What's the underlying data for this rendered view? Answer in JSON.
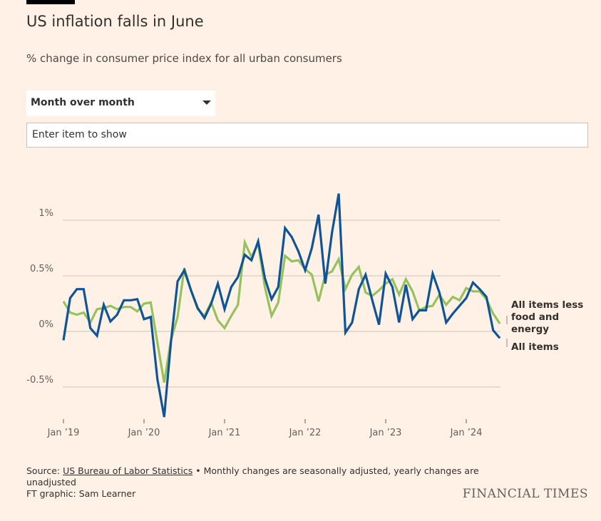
{
  "header": {
    "title": "US inflation falls in June",
    "subtitle": "% change in consumer price index for all urban consumers"
  },
  "controls": {
    "select_value": "Month over month",
    "input_placeholder": "Enter item to show"
  },
  "footer": {
    "source_prefix": "Source: ",
    "source_link": "US Bureau of Labor Statistics",
    "source_note": " • Monthly changes are seasonally adjusted, yearly changes are unadjusted",
    "credit": "FT graphic: Sam Learner",
    "logo": "FINANCIAL TIMES"
  },
  "chart_data": {
    "type": "line",
    "title": "US inflation falls in June",
    "ylabel": "% change",
    "ylim": [
      -0.8,
      1.3
    ],
    "yticks": [
      {
        "v": 1,
        "label": "1%"
      },
      {
        "v": 0.5,
        "label": "0.5%"
      },
      {
        "v": 0,
        "label": "0%"
      },
      {
        "v": -0.5,
        "label": "-0.5%"
      }
    ],
    "xticks": [
      {
        "i": 0,
        "label": "Jan ’19"
      },
      {
        "i": 12,
        "label": "Jan ’20"
      },
      {
        "i": 24,
        "label": "Jan ’21"
      },
      {
        "i": 36,
        "label": "Jan ’22"
      },
      {
        "i": 48,
        "label": "Jan ’23"
      },
      {
        "i": 60,
        "label": "Jan ’24"
      }
    ],
    "grid": true,
    "x": [
      "2019-01",
      "2019-02",
      "2019-03",
      "2019-04",
      "2019-05",
      "2019-06",
      "2019-07",
      "2019-08",
      "2019-09",
      "2019-10",
      "2019-11",
      "2019-12",
      "2020-01",
      "2020-02",
      "2020-03",
      "2020-04",
      "2020-05",
      "2020-06",
      "2020-07",
      "2020-08",
      "2020-09",
      "2020-10",
      "2020-11",
      "2020-12",
      "2021-01",
      "2021-02",
      "2021-03",
      "2021-04",
      "2021-05",
      "2021-06",
      "2021-07",
      "2021-08",
      "2021-09",
      "2021-10",
      "2021-11",
      "2021-12",
      "2022-01",
      "2022-02",
      "2022-03",
      "2022-04",
      "2022-05",
      "2022-06",
      "2022-07",
      "2022-08",
      "2022-09",
      "2022-10",
      "2022-11",
      "2022-12",
      "2023-01",
      "2023-02",
      "2023-03",
      "2023-04",
      "2023-05",
      "2023-06",
      "2023-07",
      "2023-08",
      "2023-09",
      "2023-10",
      "2023-11",
      "2023-12",
      "2024-01",
      "2024-02",
      "2024-03",
      "2024-04",
      "2024-05",
      "2024-06"
    ],
    "series": [
      {
        "name": "All items less food and energy",
        "color": "#96c25c",
        "values": [
          0.27,
          0.17,
          0.15,
          0.17,
          0.08,
          0.2,
          0.21,
          0.23,
          0.2,
          0.22,
          0.22,
          0.18,
          0.25,
          0.26,
          -0.1,
          -0.46,
          -0.08,
          0.13,
          0.57,
          0.37,
          0.2,
          0.14,
          0.26,
          0.1,
          0.03,
          0.14,
          0.24,
          0.8,
          0.67,
          0.79,
          0.4,
          0.14,
          0.26,
          0.68,
          0.63,
          0.64,
          0.56,
          0.51,
          0.27,
          0.51,
          0.54,
          0.65,
          0.38,
          0.51,
          0.58,
          0.35,
          0.32,
          0.37,
          0.43,
          0.47,
          0.33,
          0.47,
          0.36,
          0.19,
          0.22,
          0.23,
          0.33,
          0.24,
          0.31,
          0.28,
          0.39,
          0.36,
          0.36,
          0.29,
          0.16,
          0.07
        ]
      },
      {
        "name": "All items",
        "color": "#0f5499",
        "values": [
          -0.08,
          0.3,
          0.38,
          0.38,
          0.03,
          -0.04,
          0.24,
          0.09,
          0.15,
          0.28,
          0.28,
          0.29,
          0.11,
          0.13,
          -0.43,
          -0.77,
          -0.1,
          0.45,
          0.55,
          0.37,
          0.21,
          0.12,
          0.25,
          0.43,
          0.2,
          0.4,
          0.49,
          0.69,
          0.64,
          0.81,
          0.48,
          0.29,
          0.4,
          0.93,
          0.85,
          0.72,
          0.55,
          0.75,
          1.05,
          0.43,
          0.89,
          1.24,
          -0.01,
          0.08,
          0.38,
          0.51,
          0.28,
          0.06,
          0.52,
          0.4,
          0.08,
          0.42,
          0.11,
          0.19,
          0.19,
          0.52,
          0.35,
          0.08,
          0.16,
          0.23,
          0.3,
          0.44,
          0.38,
          0.31,
          0.01,
          -0.06
        ]
      }
    ],
    "labels": {
      "core": [
        "All items less",
        "food and",
        "energy"
      ],
      "all": "All items"
    }
  }
}
